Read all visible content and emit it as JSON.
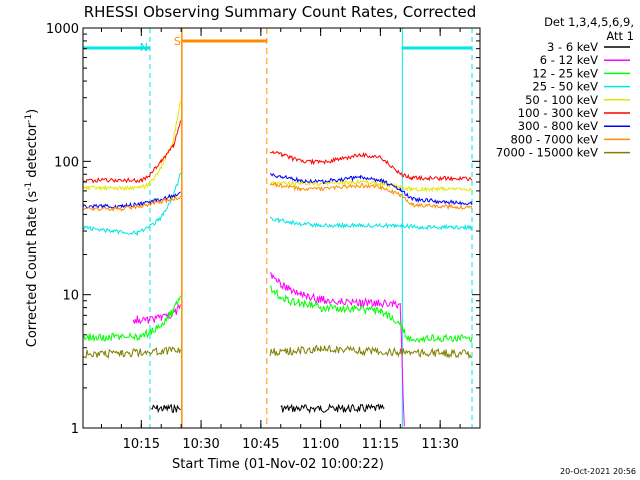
{
  "chart_data": {
    "type": "line",
    "title": "RHESSI Observing Summary Count Rates, Corrected",
    "xlabel": "Start Time (01-Nov-02 10:00:22)",
    "ylabel_prefix": "Corrected Count Rate (s",
    "ylabel_exp": "-1",
    "ylabel_mid": " detector",
    "ylabel_exp2": "-1",
    "ylabel_suffix": ")",
    "x_scale": "time",
    "x_range": [
      "10:00:22",
      "11:40:00"
    ],
    "y_scale": "log",
    "ylim": [
      1,
      1000
    ],
    "x_ticks": [
      "10:15",
      "10:30",
      "10:45",
      "11:00",
      "11:15",
      "11:30"
    ],
    "y_ticks": [
      "1",
      "10",
      "100",
      "1000"
    ],
    "legend_header": [
      "Det 1,3,4,5,6,9,",
      "Att 1"
    ],
    "legend_position": "right",
    "timestamp": "20-Oct-2021 20:56",
    "annotations": [
      {
        "text": "N",
        "color": "#00e5e5"
      },
      {
        "text": "S",
        "color": "#ff8c00"
      }
    ],
    "intervals": [
      {
        "label": "N",
        "kind": "night",
        "color": "#00e5e5",
        "times": [
          "10:00:22",
          "10:17:10"
        ]
      },
      {
        "label": "N",
        "kind": "night",
        "color": "#00e5e5",
        "times": [
          "11:20:30",
          "11:38:00"
        ]
      },
      {
        "label": "S",
        "kind": "saa",
        "color": "#ff8c00",
        "times": [
          "10:25:10",
          "10:46:30"
        ]
      }
    ],
    "series": [
      {
        "name": "3 - 6 keV",
        "color": "#000000",
        "x": [
          "10:00:22",
          "10:17:30",
          "10:22:00",
          "10:24:50",
          "10:50:00",
          "11:00:00",
          "11:10:00",
          "11:16:00",
          "11:20:00"
        ],
        "y": [
          null,
          1.4,
          1.4,
          1.4,
          1.4,
          1.4,
          1.4,
          1.4,
          null
        ]
      },
      {
        "name": "6 - 12 keV",
        "color": "#ff00ff",
        "x": [
          "10:13:00",
          "10:17:00",
          "10:20:00",
          "10:23:00",
          "10:24:50",
          "10:47:20",
          "10:50:00",
          "10:55:00",
          "11:00:00",
          "11:10:00",
          "11:18:00",
          "11:20:00",
          "11:21:00"
        ],
        "y": [
          6.5,
          6.5,
          6.7,
          7.2,
          8.0,
          14.0,
          12.0,
          10.0,
          9.2,
          8.8,
          8.5,
          8.0,
          1.0
        ]
      },
      {
        "name": "12 - 25 keV",
        "color": "#00ff00",
        "x": [
          "10:00:22",
          "10:15:00",
          "10:17:00",
          "10:20:00",
          "10:23:00",
          "10:24:50",
          "10:47:20",
          "10:52:00",
          "11:00:00",
          "11:10:00",
          "11:15:00",
          "11:20:00",
          "11:22:00",
          "11:38:00"
        ],
        "y": [
          4.8,
          4.8,
          5.2,
          6.0,
          7.5,
          10.0,
          11.0,
          9.0,
          8.0,
          7.8,
          7.5,
          6.0,
          4.7,
          4.7
        ]
      },
      {
        "name": "25 - 50 keV",
        "color": "#00e5e5",
        "x": [
          "10:00:22",
          "10:08:00",
          "10:14:00",
          "10:17:00",
          "10:20:00",
          "10:23:00",
          "10:24:50",
          "10:47:20",
          "10:55:00",
          "11:00:00",
          "11:10:00",
          "11:15:00",
          "11:20:00",
          "11:25:00",
          "11:38:00"
        ],
        "y": [
          32,
          30,
          29,
          32,
          38,
          55,
          80,
          37,
          34,
          33,
          33,
          33,
          33,
          32,
          32
        ]
      },
      {
        "name": "50 - 100 keV",
        "color": "#e6e600",
        "x": [
          "10:00:22",
          "10:10:00",
          "10:15:00",
          "10:17:00",
          "10:20:00",
          "10:23:00",
          "10:24:50",
          "10:47:20",
          "10:55:00",
          "11:00:00",
          "11:10:00",
          "11:15:00",
          "11:20:00",
          "11:23:00",
          "11:38:00"
        ],
        "y": [
          63,
          63,
          63,
          68,
          90,
          140,
          280,
          68,
          68,
          68,
          70,
          68,
          64,
          62,
          62
        ]
      },
      {
        "name": "100 - 300 keV",
        "color": "#ff0000",
        "x": [
          "10:00:22",
          "10:10:00",
          "10:15:00",
          "10:17:00",
          "10:20:00",
          "10:23:00",
          "10:24:50",
          "10:47:20",
          "10:55:00",
          "11:00:00",
          "11:05:00",
          "11:10:00",
          "11:15:00",
          "11:20:00",
          "11:23:00",
          "11:38:00"
        ],
        "y": [
          72,
          72,
          72,
          78,
          100,
          130,
          200,
          120,
          100,
          98,
          104,
          112,
          108,
          80,
          75,
          74
        ]
      },
      {
        "name": "300 - 800 keV",
        "color": "#0000ff",
        "x": [
          "10:00:22",
          "10:10:00",
          "10:15:00",
          "10:20:00",
          "10:24:50",
          "10:47:20",
          "10:55:00",
          "11:00:00",
          "11:10:00",
          "11:15:00",
          "11:20:00",
          "11:23:00",
          "11:38:00"
        ],
        "y": [
          46,
          46,
          48,
          52,
          58,
          80,
          72,
          70,
          76,
          72,
          62,
          52,
          48
        ]
      },
      {
        "name": "800 - 7000 keV",
        "color": "#ff8c00",
        "x": [
          "10:00:22",
          "10:10:00",
          "10:15:00",
          "10:20:00",
          "10:24:50",
          "10:47:20",
          "10:55:00",
          "11:00:00",
          "11:10:00",
          "11:15:00",
          "11:20:00",
          "11:23:00",
          "11:38:00"
        ],
        "y": [
          44,
          44,
          46,
          50,
          54,
          68,
          62,
          62,
          66,
          64,
          56,
          47,
          45
        ]
      },
      {
        "name": "7000 - 15000 keV",
        "color": "#808000",
        "x": [
          "10:00:22",
          "10:10:00",
          "10:20:00",
          "10:24:50",
          "10:47:20",
          "11:00:00",
          "11:10:00",
          "11:20:00",
          "11:38:00"
        ],
        "y": [
          3.6,
          3.6,
          3.8,
          3.8,
          3.7,
          3.9,
          3.8,
          3.7,
          3.6
        ]
      }
    ]
  }
}
